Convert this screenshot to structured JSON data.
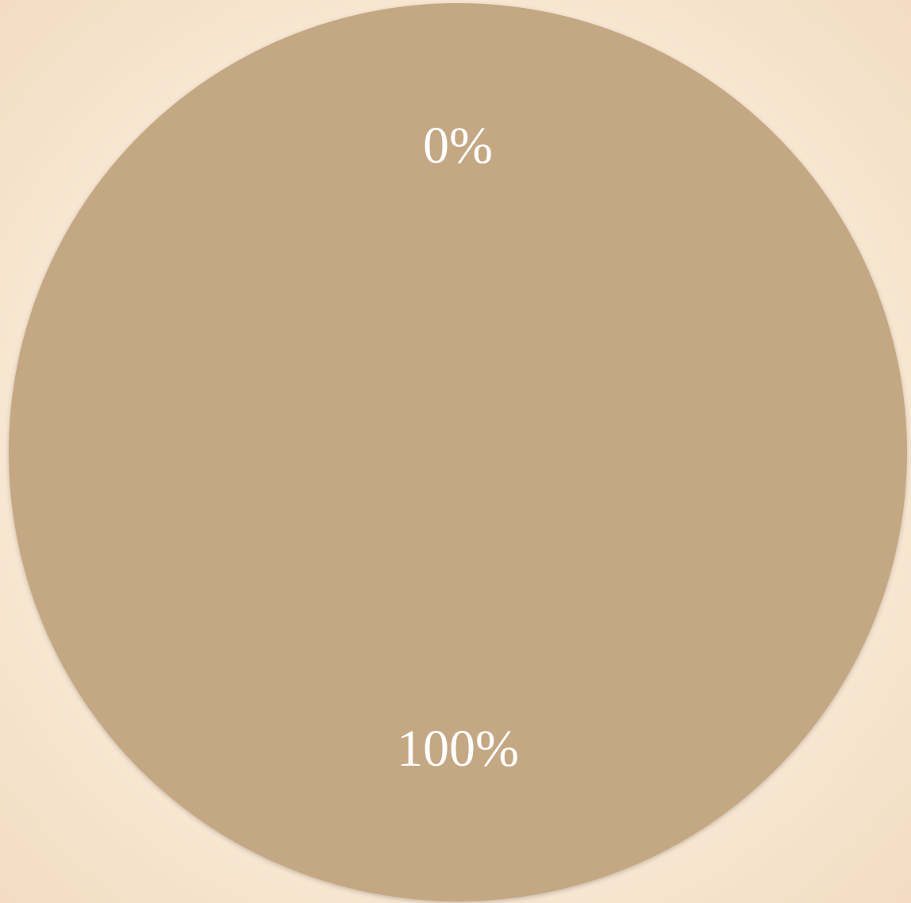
{
  "chart_data": {
    "type": "pie",
    "categories": [
      null,
      null
    ],
    "values": [
      0,
      100
    ],
    "value_labels": [
      "0%",
      "100%"
    ],
    "colors": [
      "#c4a783",
      "#c4a783"
    ]
  }
}
